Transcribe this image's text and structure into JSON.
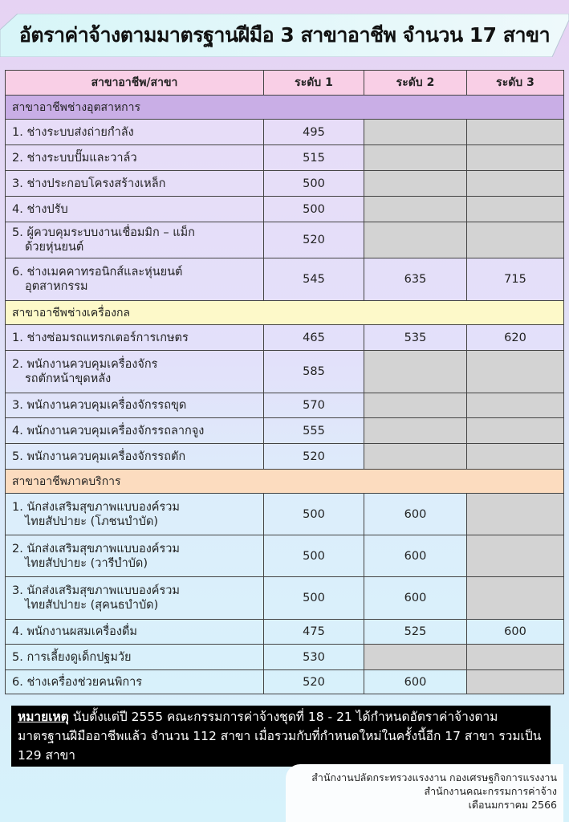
{
  "title": "อัตราค่าจ้างตามมาตรฐานฝีมือ 3 สาขาอาชีพ จำนวน 17 สาขา",
  "table": {
    "headers": [
      "สาขาอาชีพ/สาขา",
      "ระดับ 1",
      "ระดับ 2",
      "ระดับ 3"
    ],
    "sections": [
      {
        "name": "สาขาอาชีพช่างอุตสาหการ",
        "color": "#c9aee6",
        "rows": [
          {
            "name": "1. ช่างระบบส่งถ่ายกำลัง",
            "values": [
              495,
              null,
              null
            ]
          },
          {
            "name": "2. ช่างระบบปั๊มและวาล์ว",
            "values": [
              515,
              null,
              null
            ]
          },
          {
            "name": "3. ช่างประกอบโครงสร้างเหล็ก",
            "values": [
              500,
              null,
              null
            ]
          },
          {
            "name": "4. ช่างปรับ",
            "values": [
              500,
              null,
              null
            ]
          },
          {
            "name": "5. ผู้ควบคุมระบบงานเชื่อมมิก – แม็ก\nด้วยหุ่นยนต์",
            "values": [
              520,
              null,
              null
            ]
          },
          {
            "name": "6. ช่างเมคคาทรอนิกส์และหุ่นยนต์\nอุตสาหกรรม",
            "values": [
              545,
              635,
              715
            ]
          }
        ]
      },
      {
        "name": "สาขาอาชีพช่างเครื่องกล",
        "color": "#fdf9c9",
        "rows": [
          {
            "name": "1.     ช่างซ่อมรถแทรกเตอร์การเกษตร",
            "values": [
              465,
              535,
              620
            ]
          },
          {
            "name": "2. พนักงานควบคุมเครื่องจักร\nรถตักหน้าขุดหลัง",
            "values": [
              585,
              null,
              null
            ]
          },
          {
            "name": "3. พนักงานควบคุมเครื่องจักรรถขุด",
            "values": [
              570,
              null,
              null
            ]
          },
          {
            "name": "4. พนักงานควบคุมเครื่องจักรรถลากจูง",
            "values": [
              555,
              null,
              null
            ]
          },
          {
            "name": "5. พนักงานควบคุมเครื่องจักรรถตัก",
            "values": [
              520,
              null,
              null
            ]
          }
        ]
      },
      {
        "name": "สาขาอาชีพภาคบริการ",
        "color": "#fcdcbf",
        "rows": [
          {
            "name": "1. นักส่งเสริมสุขภาพแบบองค์รวม\nไทยสัปปายะ (โภชนบำบัด)",
            "values": [
              500,
              600,
              null
            ]
          },
          {
            "name": "2. นักส่งเสริมสุขภาพแบบองค์รวม\nไทยสัปปายะ (วารีบำบัด)",
            "values": [
              500,
              600,
              null
            ]
          },
          {
            "name": "3. นักส่งเสริมสุขภาพแบบองค์รวม\nไทยสัปปายะ (สุคนธบำบัด)",
            "values": [
              500,
              600,
              null
            ]
          },
          {
            "name": "4. พนักงานผสมเครื่องดื่ม",
            "values": [
              475,
              525,
              600
            ]
          },
          {
            "name": "5. การเลี้ยงดูเด็กปฐมวัย",
            "values": [
              530,
              null,
              null
            ]
          },
          {
            "name": "6. ช่างเครื่องช่วยคนพิการ",
            "values": [
              520,
              600,
              null
            ]
          }
        ]
      }
    ],
    "empty_cell_color": "#d3d3d3"
  },
  "note": {
    "label": "หมายเหตุ",
    "text": " นับตั้งแต่ปี 2555 คณะกรรมการค่าจ้างชุดที่ 18 - 21 ได้กำหนดอัตราค่าจ้างตามมาตรฐานฝีมืออาชีพแล้ว จำนวน 112 สาขา เมื่อรวมกับที่กำหนดใหม่ในครั้งนี้อีก 17 สาขา รวมเป็น 129 สาขา"
  },
  "credit": {
    "line1": "สำนักงานปลัดกระทรวงแรงงาน กองเศรษฐกิจการแรงงาน",
    "line2": "สำนักงานคณะกรรมการค่าจ้าง",
    "line3": "เดือนมกราคม 2566"
  }
}
